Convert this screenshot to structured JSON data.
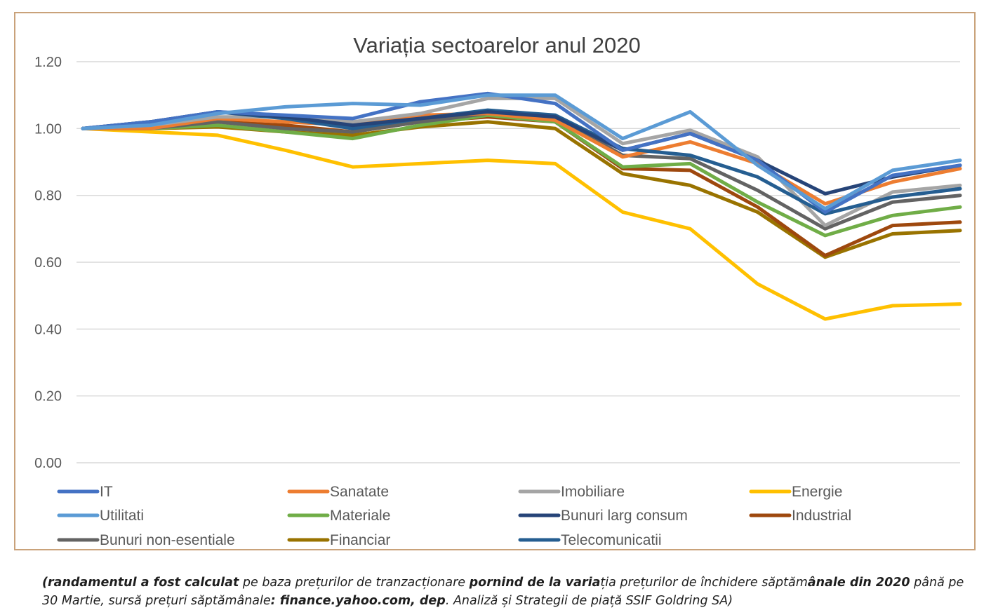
{
  "chart_data": {
    "type": "line",
    "title": "Variația sectoarelor anul 2020",
    "xlabel": "",
    "ylabel": "",
    "ylim": [
      0,
      1.2
    ],
    "yticks": [
      "0.00",
      "0.20",
      "0.40",
      "0.60",
      "0.80",
      "1.00",
      "1.20"
    ],
    "grid": true,
    "legend_position": "bottom",
    "series": [
      {
        "name": "IT",
        "color": "#4472c4",
        "values": [
          1.0,
          1.02,
          1.05,
          1.04,
          1.03,
          1.08,
          1.105,
          1.075,
          0.935,
          0.985,
          0.905,
          0.75,
          0.86,
          0.89
        ]
      },
      {
        "name": "Sanatate",
        "color": "#ed7d31",
        "values": [
          1.0,
          1.0,
          1.03,
          1.02,
          1.01,
          1.04,
          1.045,
          1.025,
          0.915,
          0.96,
          0.895,
          0.775,
          0.84,
          0.88
        ]
      },
      {
        "name": "Imobiliare",
        "color": "#a5a5a5",
        "values": [
          1.0,
          1.01,
          1.035,
          1.035,
          1.02,
          1.045,
          1.09,
          1.09,
          0.955,
          0.995,
          0.915,
          0.71,
          0.81,
          0.83
        ]
      },
      {
        "name": "Energie",
        "color": "#ffc000",
        "values": [
          1.0,
          0.99,
          0.98,
          0.935,
          0.885,
          0.895,
          0.905,
          0.895,
          0.75,
          0.7,
          0.535,
          0.43,
          0.47,
          0.475
        ]
      },
      {
        "name": "Utilitati",
        "color": "#5b9bd5",
        "values": [
          1.0,
          1.01,
          1.045,
          1.065,
          1.075,
          1.07,
          1.1,
          1.1,
          0.97,
          1.05,
          0.89,
          0.76,
          0.875,
          0.905
        ]
      },
      {
        "name": "Materiale",
        "color": "#70ad47",
        "values": [
          1.0,
          1.0,
          1.01,
          0.99,
          0.97,
          1.01,
          1.04,
          1.02,
          0.885,
          0.895,
          0.78,
          0.68,
          0.74,
          0.765
        ]
      },
      {
        "name": "Bunuri larg consum",
        "color": "#264478",
        "values": [
          1.0,
          1.02,
          1.05,
          1.035,
          1.01,
          1.03,
          1.05,
          1.035,
          0.935,
          0.985,
          0.905,
          0.805,
          0.855,
          0.89
        ]
      },
      {
        "name": "Industrial",
        "color": "#9e480e",
        "values": [
          1.0,
          1.0,
          1.02,
          1.01,
          0.99,
          1.02,
          1.035,
          1.02,
          0.88,
          0.875,
          0.765,
          0.62,
          0.71,
          0.72
        ]
      },
      {
        "name": "Bunuri non-esentiale",
        "color": "#636363",
        "values": [
          1.0,
          1.0,
          1.02,
          1.0,
          0.99,
          1.02,
          1.045,
          1.035,
          0.92,
          0.91,
          0.815,
          0.7,
          0.78,
          0.8
        ]
      },
      {
        "name": "Financiar",
        "color": "#997300",
        "values": [
          1.0,
          1.0,
          1.005,
          0.99,
          0.98,
          1.005,
          1.02,
          1.0,
          0.865,
          0.83,
          0.75,
          0.615,
          0.685,
          0.695
        ]
      },
      {
        "name": "Telecomunicatii",
        "color": "#255e91",
        "values": [
          1.0,
          1.02,
          1.05,
          1.03,
          1.0,
          1.03,
          1.055,
          1.04,
          0.94,
          0.92,
          0.855,
          0.745,
          0.795,
          0.82
        ]
      }
    ]
  },
  "caption": {
    "bold1": "(randamentul a fost calculat",
    "text1": " pe baza prețurilor de tranzacționare ",
    "bold2": " pornind de la varia",
    "text2": "ția prețurilor de închidere săptăm",
    "bold3": "ânale din 2020",
    "text3": "  până pe 30 Martie, sursă prețuri săptămânale",
    "bold4": ": finance.yahoo.com, dep",
    "text4": ". Analiză și Strategii de piață SSIF Goldring SA)"
  }
}
